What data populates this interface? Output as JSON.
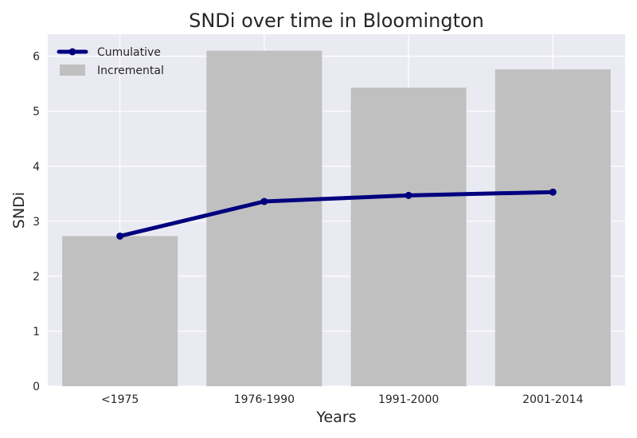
{
  "chart_data": {
    "type": "bar",
    "title": "SNDi over time in Bloomington",
    "xlabel": "Years",
    "ylabel": "SNDi",
    "categories": [
      "<1975",
      "1976-1990",
      "1991-2000",
      "2001-2014"
    ],
    "ylim": [
      0,
      6.4
    ],
    "yticks": [
      0,
      1,
      2,
      3,
      4,
      5,
      6
    ],
    "grid": true,
    "legend_position": "top-left",
    "series": [
      {
        "name": "Cumulative",
        "type": "line",
        "color": "#00007f",
        "values": [
          2.73,
          3.36,
          3.47,
          3.53
        ]
      },
      {
        "name": "Incremental",
        "type": "bar",
        "color": "#c0c0c0",
        "values": [
          2.73,
          6.1,
          5.43,
          5.76
        ]
      }
    ],
    "background_color": "#eaeaf2",
    "grid_color": "#ffffff"
  }
}
